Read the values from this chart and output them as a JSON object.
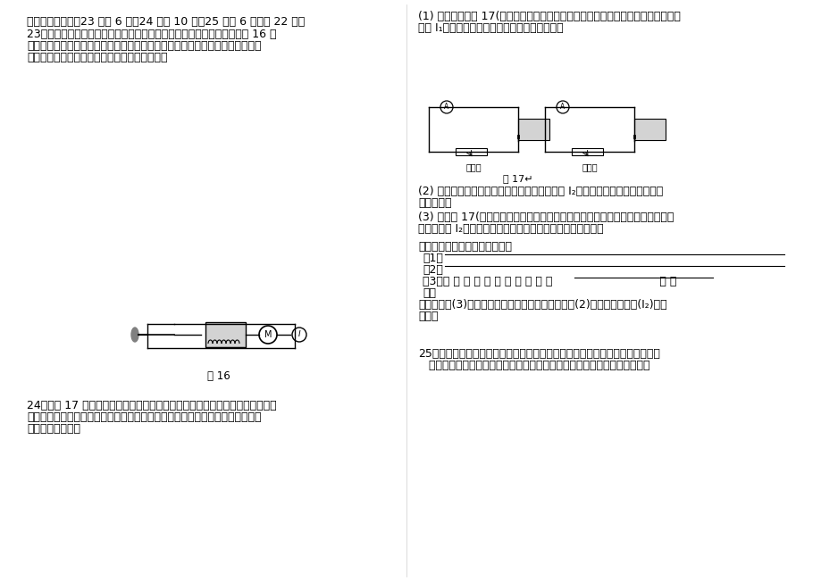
{
  "background_color": "#ffffff",
  "page_width": 9.2,
  "page_height": 6.51,
  "dpi": 100,
  "left_column": {
    "section_header": "四、实验探究题（23 小题 6 分，24 小题 10 分，25 小题 6 分，共 22 分）",
    "q23_lines": [
      "23．王宾对汽车启动很感兴趣，于是他，找来了汽车启动的原理图，如图 16 所",
      "示，当驾驶员用钥匙接通仪器板上的开关，发动机工作，王宾思考了一会儿，就",
      "知道它的工作原理了。你知道它的工作原理吗？"
    ],
    "fig16_label": "图 16",
    "q24_lines": [
      "24．如图 17 中的电磁铁为一个中间有抽头的电磁铁的示意图，小明为了研究外",
      "形相同的电磁铁磁性的强弱与通电电流的大小及线圈匝数的关系。他做了如下实",
      "验，实验步骤为："
    ]
  },
  "right_column": {
    "step1_lines": [
      "(1) 先连接好如图 17(甲）所示的电路，调整滑动变阻器的滑片使电流表示数较小，",
      "记为 I₁，发现电磁铁吸引住大头针的数目较少；"
    ],
    "fig17_label": "图 17↵",
    "step2_lines": [
      "(2) 调整滑动变阻器滑片使电流表的示数增大到 I₂，发现电磁铁吸引住大头针的",
      "数目增加；"
    ],
    "step3_lines": [
      "(3) 再按图 17(乙）所示的电路图连接好电路，调整滑动变阻器的滑片使电流表的",
      "示数保持为 I₂，发现电磁铁吸引住大头针的数目进一步增加；"
    ],
    "conclusion_intro": "从以上实验我们得出的结论是：",
    "conclusion1": "（1）",
    "conclusion1_line": true,
    "conclusion2": "（2）",
    "conclusion2_line": true,
    "method_line": "（3）实 验 中 采 用 的 研 究 方 法 是                              法 和",
    "method_line2": "法。",
    "question_lines": [
      "在实验步骤(3)中为什么要强调电流表的示数与步骤(2)中电流表的示数(I₂)保持",
      "相同？"
    ],
    "q25_lines": [
      "25、小芳在做探究感应电流方向与哪些因素有关时，猜想金属棒在磁场中运动产",
      "   生的感应电流的方向可能与磁场的方向有关，也可能与金属棒的运动方向有"
    ]
  }
}
